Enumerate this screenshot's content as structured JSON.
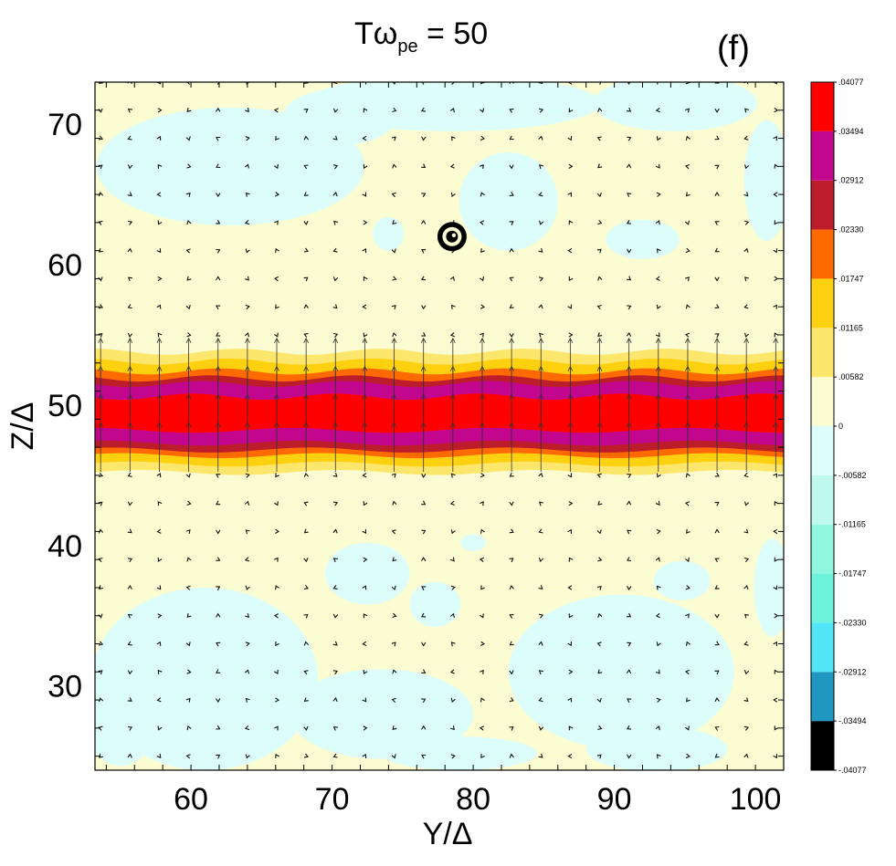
{
  "chart_data": {
    "type": "heatmap",
    "title": {
      "prefix": "Tω",
      "subscript": "pe",
      "suffix": " =  50"
    },
    "panel_label": "(f)",
    "xlabel": "Y/Δ",
    "ylabel": "Z/Δ",
    "xlim": [
      53.2,
      102
    ],
    "ylim": [
      24,
      73
    ],
    "x_ticks": [
      60,
      70,
      80,
      90,
      100
    ],
    "y_ticks": [
      30,
      40,
      50,
      60,
      70
    ],
    "x_tick_labels": [
      "60",
      "70",
      "80",
      "90",
      "100"
    ],
    "y_tick_labels": [
      "30",
      "40",
      "50",
      "60",
      "70"
    ],
    "colorbar": {
      "levels": [
        -0.04077,
        -0.03494,
        -0.02912,
        -0.0233,
        -0.01747,
        -0.01165,
        -0.00582,
        0,
        0.00582,
        0.01165,
        0.01747,
        0.0233,
        0.02912,
        0.03494,
        0.04077
      ],
      "labels": [
        "-.04077",
        "-.03494",
        "-.02912",
        "-.02330",
        "-.01747",
        "-.01165",
        "-.00582",
        "0",
        ".00582",
        ".01165",
        ".01747",
        ".02330",
        ".02912",
        ".03494",
        ".04077"
      ],
      "colors": [
        "#000000",
        "#1f97c0",
        "#52e4f7",
        "#6ff2dc",
        "#8ef7de",
        "#bff9ee",
        "#dcfdf9",
        "#fcfcd2",
        "#fde66c",
        "#fdd010",
        "#ff6a00",
        "#bd1c2a",
        "#c2068d",
        "#ff0000"
      ]
    },
    "current_sheet": {
      "description": "horizontal current layer centred at Z/Δ ≈ 49.5",
      "bands": [
        {
          "z_min": 45.2,
          "z_max": 53.8,
          "level_index": 8
        },
        {
          "z_min": 45.8,
          "z_max": 53.1,
          "level_index": 9
        },
        {
          "z_min": 46.4,
          "z_max": 52.4,
          "level_index": 10
        },
        {
          "z_min": 46.8,
          "z_max": 51.9,
          "level_index": 11
        },
        {
          "z_min": 47.3,
          "z_max": 51.5,
          "level_index": 12
        },
        {
          "z_min": 48.2,
          "z_max": 50.6,
          "level_index": 13
        }
      ]
    },
    "negative_regions": [
      {
        "y": 62.8,
        "z": 67.0,
        "ry": 9.5,
        "rz": 4.2
      },
      {
        "y": 78.5,
        "z": 71.5,
        "ry": 10.5,
        "rz": 2.0
      },
      {
        "y": 82.5,
        "z": 64.5,
        "ry": 3.5,
        "rz": 3.5
      },
      {
        "y": 70.5,
        "z": 70.5,
        "ry": 4.0,
        "rz": 2.0
      },
      {
        "y": 94.3,
        "z": 71.5,
        "ry": 5.8,
        "rz": 2.0
      },
      {
        "y": 100.8,
        "z": 66.0,
        "ry": 1.6,
        "rz": 4.3
      },
      {
        "y": 92.0,
        "z": 61.8,
        "ry": 2.6,
        "rz": 1.4
      },
      {
        "y": 74.0,
        "z": 62.2,
        "ry": 1.1,
        "rz": 1.2
      },
      {
        "y": 61.0,
        "z": 30.5,
        "ry": 8.0,
        "rz": 6.5
      },
      {
        "y": 55.0,
        "z": 27.5,
        "ry": 2.5,
        "rz": 3.2
      },
      {
        "y": 73.5,
        "z": 28.0,
        "ry": 6.5,
        "rz": 3.2
      },
      {
        "y": 79.0,
        "z": 25.2,
        "ry": 5.5,
        "rz": 1.2
      },
      {
        "y": 72.5,
        "z": 38.0,
        "ry": 3.0,
        "rz": 2.2
      },
      {
        "y": 77.3,
        "z": 35.8,
        "ry": 1.8,
        "rz": 1.6
      },
      {
        "y": 80.0,
        "z": 40.2,
        "ry": 0.9,
        "rz": 0.6
      },
      {
        "y": 90.5,
        "z": 31.0,
        "ry": 8.0,
        "rz": 5.5
      },
      {
        "y": 94.8,
        "z": 37.5,
        "ry": 2.0,
        "rz": 1.4
      },
      {
        "y": 101.2,
        "z": 37.0,
        "ry": 1.3,
        "rz": 3.5
      },
      {
        "y": 93.0,
        "z": 25.5,
        "ry": 5.0,
        "rz": 1.6
      }
    ],
    "marker": {
      "type": "out-of-plane-symbol",
      "y": 78.5,
      "z": 62.0
    },
    "vectors": {
      "grid_y_start": 53.6,
      "grid_y_step": 2.08,
      "grid_z_start": 25.0,
      "grid_z_step": 2.0,
      "sheet_z_range": [
        46.5,
        53.5
      ],
      "sheet_arrow_length_z": 3.5
    }
  }
}
